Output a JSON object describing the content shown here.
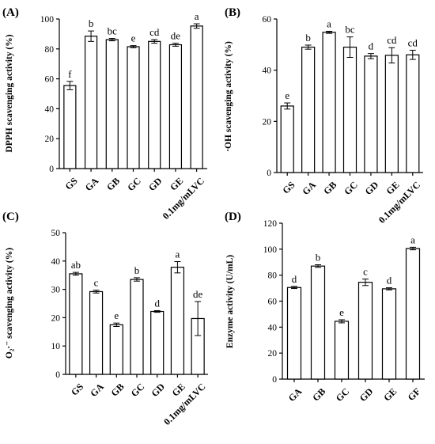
{
  "chart_data": [
    {
      "panel": "(A)",
      "type": "bar",
      "ylabel": "DPPH scavenging activity (%)",
      "ylim": [
        0,
        100
      ],
      "yticks": [
        0,
        20,
        40,
        60,
        80,
        100
      ],
      "categories": [
        "GS",
        "GA",
        "GB",
        "GC",
        "GD",
        "GE",
        "0.1mg/mLVC"
      ],
      "values": [
        55.5,
        88.5,
        86.2,
        81.5,
        85.0,
        82.8,
        95.3
      ],
      "errors": [
        2.8,
        3.5,
        0.8,
        0.7,
        1.2,
        1.0,
        1.5
      ],
      "letters": [
        "f",
        "b",
        "bc",
        "e",
        "cd",
        "de",
        "a"
      ]
    },
    {
      "panel": "(B)",
      "type": "bar",
      "ylabel": "·OH scavenging activity (%)",
      "ylim": [
        0,
        60
      ],
      "yticks": [
        0,
        20,
        40,
        60
      ],
      "categories": [
        "GS",
        "GA",
        "GB",
        "GC",
        "GD",
        "GE",
        "0.1mg/mLVC"
      ],
      "values": [
        26.0,
        49.0,
        54.8,
        49.0,
        45.5,
        45.8,
        46.0
      ],
      "errors": [
        1.2,
        0.8,
        0.4,
        4.0,
        1.0,
        3.0,
        1.8
      ],
      "letters": [
        "e",
        "b",
        "a",
        "bc",
        "d",
        "cd",
        "cd"
      ]
    },
    {
      "panel": "(C)",
      "type": "bar",
      "ylabel": "O₂·⁻ scavenging activity (%)",
      "ylim": [
        0,
        50
      ],
      "yticks": [
        0,
        10,
        20,
        30,
        40,
        50
      ],
      "categories": [
        "GS",
        "GA",
        "GB",
        "GC",
        "GD",
        "GE",
        "0.1mg/mLVC"
      ],
      "values": [
        35.5,
        29.2,
        17.5,
        33.5,
        22.2,
        37.8,
        19.7
      ],
      "errors": [
        0.5,
        0.5,
        0.6,
        0.6,
        0.3,
        2.0,
        6.0
      ],
      "letters": [
        "ab",
        "c",
        "e",
        "b",
        "d",
        "a",
        "de"
      ]
    },
    {
      "panel": "(D)",
      "type": "bar",
      "ylabel": "Enzyme activity (U/mL)",
      "ylim": [
        0,
        120
      ],
      "yticks": [
        0,
        20,
        40,
        60,
        80,
        100,
        120
      ],
      "categories": [
        "GA",
        "GB",
        "GC",
        "GD",
        "GE",
        "GF"
      ],
      "values": [
        70.5,
        87.0,
        44.5,
        74.5,
        69.5,
        100.5
      ],
      "errors": [
        0.8,
        1.0,
        1.2,
        2.5,
        0.8,
        1.0
      ],
      "letters": [
        "d",
        "b",
        "e",
        "c",
        "d",
        "a"
      ]
    }
  ]
}
